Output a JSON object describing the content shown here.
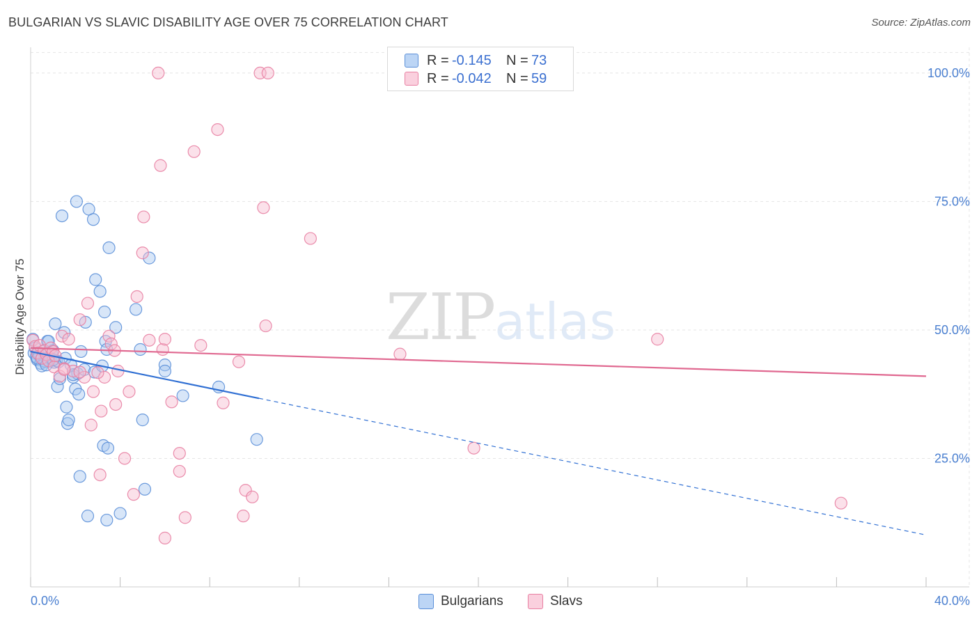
{
  "header": {
    "title": "BULGARIAN VS SLAVIC DISABILITY AGE OVER 75 CORRELATION CHART",
    "source": "Source: ZipAtlas.com"
  },
  "watermark": {
    "part1": "ZIP",
    "part2": "atlas"
  },
  "legend_top": {
    "rows": [
      {
        "r_label": "R =",
        "r_value": "-0.145",
        "n_label": "N =",
        "n_value": "73"
      },
      {
        "r_label": "R =",
        "r_value": "-0.042",
        "n_label": "N =",
        "n_value": "59"
      }
    ]
  },
  "legend_bottom": {
    "items": [
      "Bulgarians",
      "Slavs"
    ]
  },
  "colors": {
    "bulgarians_fill": "#a8c8f0",
    "bulgarians_stroke": "#5b8fd8",
    "bulgarians_line": "#2f6fd3",
    "slavs_fill": "#f7bcd0",
    "slavs_stroke": "#e87fa2",
    "slavs_line": "#e06890"
  },
  "chart_data": {
    "type": "scatter",
    "title": "BULGARIAN VS SLAVIC DISABILITY AGE OVER 75 CORRELATION CHART",
    "xlabel": "",
    "ylabel": "Disability Age Over 75",
    "xlim": [
      0,
      40
    ],
    "ylim": [
      0,
      105
    ],
    "x_tick_labels": [
      "0.0%",
      "40.0%"
    ],
    "y_ticks": [
      25,
      50,
      75,
      100
    ],
    "y_tick_labels": [
      "25.0%",
      "50.0%",
      "75.0%",
      "100.0%"
    ],
    "grid": true,
    "series": [
      {
        "name": "Bulgarians",
        "r": -0.145,
        "n": 73,
        "trend": {
          "x0": 0,
          "y0": 45.8,
          "x_solid_end": 10.2,
          "x1": 40,
          "y1": 10.1
        },
        "points": [
          [
            0.1,
            48.2
          ],
          [
            0.15,
            45.5
          ],
          [
            0.2,
            46.5
          ],
          [
            0.25,
            44.8
          ],
          [
            0.3,
            44.2
          ],
          [
            0.35,
            45.6
          ],
          [
            0.4,
            45.0
          ],
          [
            0.45,
            43.5
          ],
          [
            0.5,
            44.5
          ],
          [
            0.55,
            45.8
          ],
          [
            0.6,
            44.0
          ],
          [
            0.65,
            43.8
          ],
          [
            0.7,
            45.3
          ],
          [
            0.75,
            47.8
          ],
          [
            0.8,
            44.6
          ],
          [
            0.85,
            43.9
          ],
          [
            0.9,
            44.5
          ],
          [
            0.95,
            45.2
          ],
          [
            1.0,
            46.0
          ],
          [
            1.05,
            43.7
          ],
          [
            1.1,
            51.2
          ],
          [
            1.15,
            44.0
          ],
          [
            1.2,
            39.0
          ],
          [
            1.25,
            43.8
          ],
          [
            1.3,
            40.5
          ],
          [
            1.4,
            72.2
          ],
          [
            1.5,
            49.5
          ],
          [
            1.55,
            44.5
          ],
          [
            1.6,
            35.0
          ],
          [
            1.65,
            31.8
          ],
          [
            1.7,
            32.5
          ],
          [
            1.8,
            43.2
          ],
          [
            1.9,
            40.8
          ],
          [
            2.0,
            38.5
          ],
          [
            2.05,
            75.0
          ],
          [
            2.1,
            41.5
          ],
          [
            2.15,
            37.5
          ],
          [
            2.2,
            21.5
          ],
          [
            2.25,
            45.8
          ],
          [
            2.4,
            42.3
          ],
          [
            2.45,
            51.5
          ],
          [
            2.55,
            13.8
          ],
          [
            2.6,
            73.5
          ],
          [
            2.8,
            71.5
          ],
          [
            2.85,
            41.8
          ],
          [
            2.9,
            59.8
          ],
          [
            3.1,
            57.5
          ],
          [
            3.2,
            43.0
          ],
          [
            3.25,
            27.5
          ],
          [
            3.3,
            53.5
          ],
          [
            3.35,
            47.8
          ],
          [
            3.4,
            46.2
          ],
          [
            3.4,
            13.0
          ],
          [
            3.45,
            27.0
          ],
          [
            3.5,
            66.0
          ],
          [
            3.8,
            50.5
          ],
          [
            4.0,
            14.3
          ],
          [
            4.7,
            54.0
          ],
          [
            4.9,
            46.2
          ],
          [
            5.0,
            32.5
          ],
          [
            5.1,
            19.0
          ],
          [
            5.3,
            64.0
          ],
          [
            6.0,
            43.2
          ],
          [
            6.0,
            42.0
          ],
          [
            6.8,
            37.2
          ],
          [
            8.4,
            38.9
          ],
          [
            10.1,
            28.7
          ],
          [
            0.5,
            43.0
          ],
          [
            0.7,
            43.2
          ],
          [
            1.9,
            41.3
          ],
          [
            0.3,
            44.5
          ],
          [
            1.0,
            44.2
          ],
          [
            0.8,
            47.8
          ]
        ]
      },
      {
        "name": "Slavs",
        "r": -0.042,
        "n": 59,
        "trend": {
          "x0": 0,
          "y0": 46.5,
          "x1": 40,
          "y1": 41.0
        },
        "points": [
          [
            0.1,
            48.0
          ],
          [
            0.2,
            46.8
          ],
          [
            0.3,
            45.5
          ],
          [
            0.4,
            47.0
          ],
          [
            0.5,
            44.5
          ],
          [
            0.6,
            46.0
          ],
          [
            0.7,
            45.2
          ],
          [
            0.8,
            44.0
          ],
          [
            0.9,
            46.5
          ],
          [
            1.0,
            45.8
          ],
          [
            1.05,
            42.8
          ],
          [
            1.1,
            45.0
          ],
          [
            1.3,
            41.0
          ],
          [
            1.4,
            48.8
          ],
          [
            1.5,
            42.5
          ],
          [
            1.7,
            48.2
          ],
          [
            1.9,
            42.0
          ],
          [
            2.2,
            52.0
          ],
          [
            2.4,
            40.8
          ],
          [
            2.55,
            55.2
          ],
          [
            2.7,
            31.5
          ],
          [
            2.8,
            38.0
          ],
          [
            3.1,
            21.8
          ],
          [
            3.15,
            34.2
          ],
          [
            3.3,
            40.8
          ],
          [
            3.5,
            48.8
          ],
          [
            3.6,
            47.3
          ],
          [
            3.75,
            46.0
          ],
          [
            3.9,
            42.0
          ],
          [
            4.2,
            25.0
          ],
          [
            4.4,
            38.0
          ],
          [
            4.6,
            18.0
          ],
          [
            4.75,
            56.5
          ],
          [
            5.0,
            65.0
          ],
          [
            5.05,
            72.0
          ],
          [
            5.3,
            48.0
          ],
          [
            5.7,
            100.0
          ],
          [
            5.8,
            82.0
          ],
          [
            5.9,
            46.2
          ],
          [
            6.0,
            48.2
          ],
          [
            6.0,
            9.5
          ],
          [
            6.3,
            36.0
          ],
          [
            6.65,
            26.0
          ],
          [
            6.65,
            22.5
          ],
          [
            6.9,
            13.5
          ],
          [
            7.3,
            84.7
          ],
          [
            7.6,
            47.0
          ],
          [
            8.35,
            89.0
          ],
          [
            8.6,
            35.8
          ],
          [
            9.3,
            43.8
          ],
          [
            9.5,
            13.8
          ],
          [
            9.6,
            18.8
          ],
          [
            9.9,
            17.5
          ],
          [
            10.25,
            100.0
          ],
          [
            10.4,
            73.8
          ],
          [
            10.5,
            50.8
          ],
          [
            12.5,
            67.8
          ],
          [
            16.5,
            45.3
          ],
          [
            19.8,
            27.0
          ]
        ]
      }
    ],
    "extra_points_note": "",
    "extra_points": {
      "Slavs": [
        [
          28.0,
          48.2
        ],
        [
          36.2,
          16.3
        ],
        [
          10.6,
          100.0
        ],
        [
          2.2,
          41.8
        ],
        [
          1.5,
          42.3
        ],
        [
          3.8,
          35.5
        ],
        [
          3.0,
          41.7
        ]
      ]
    }
  }
}
